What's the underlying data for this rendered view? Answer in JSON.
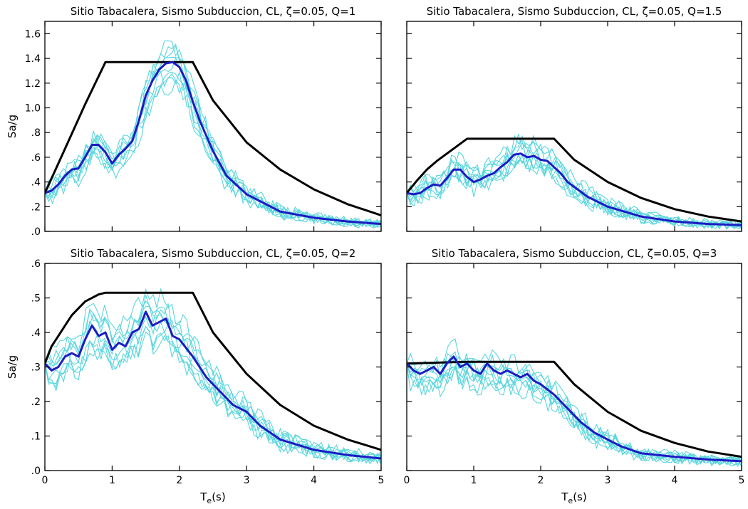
{
  "colors": {
    "records": "#5ad6dc",
    "mean": "#1c1cc4",
    "design": "#000000"
  },
  "chart_data": [
    {
      "type": "line",
      "title": "Sitio Tabacalera, Sismo Subduccion, CL, ζ=0.05, Q=1",
      "xlabel": "",
      "ylabel": "Sa/g",
      "xlim": [
        0,
        5
      ],
      "ylim": [
        0,
        1.7
      ],
      "xticks": [
        0,
        1,
        2,
        3,
        4,
        5
      ],
      "xtick_labels": [],
      "yticks": [
        0,
        0.2,
        0.4,
        0.6,
        0.8,
        1.0,
        1.2,
        1.4,
        1.6
      ],
      "ytick_labels": [
        ".0",
        ".2",
        ".4",
        ".6",
        ".8",
        "1.0",
        "1.2",
        "1.4",
        "1.6"
      ],
      "design": {
        "x": [
          0,
          0.2,
          0.4,
          0.6,
          0.9,
          2.2,
          2.5,
          3,
          3.5,
          4,
          4.5,
          5
        ],
        "y": [
          0.31,
          0.55,
          0.79,
          1.03,
          1.37,
          1.37,
          1.06,
          0.72,
          0.5,
          0.34,
          0.22,
          0.13
        ]
      },
      "mean": {
        "x": [
          0,
          0.1,
          0.2,
          0.3,
          0.4,
          0.5,
          0.6,
          0.7,
          0.8,
          0.9,
          1.0,
          1.1,
          1.2,
          1.3,
          1.4,
          1.5,
          1.6,
          1.7,
          1.8,
          1.9,
          2.0,
          2.1,
          2.2,
          2.3,
          2.5,
          2.7,
          3.0,
          3.5,
          4.0,
          4.5,
          5.0
        ],
        "y": [
          0.31,
          0.33,
          0.38,
          0.45,
          0.5,
          0.51,
          0.6,
          0.7,
          0.7,
          0.64,
          0.55,
          0.62,
          0.67,
          0.73,
          0.9,
          1.1,
          1.22,
          1.31,
          1.36,
          1.37,
          1.33,
          1.22,
          1.05,
          0.9,
          0.65,
          0.45,
          0.3,
          0.16,
          0.11,
          0.08,
          0.06
        ]
      }
    },
    {
      "type": "line",
      "title": "Sitio Tabacalera, Sismo Subduccion, CL, ζ=0.05, Q=1.5",
      "xlabel": "",
      "ylabel": "",
      "xlim": [
        0,
        5
      ],
      "ylim": [
        0,
        1.7
      ],
      "xticks": [
        0,
        1,
        2,
        3,
        4,
        5
      ],
      "xtick_labels": [],
      "yticks": [
        0,
        0.2,
        0.4,
        0.6,
        0.8,
        1.0,
        1.2,
        1.4,
        1.6
      ],
      "ytick_labels": [],
      "design": {
        "x": [
          0,
          0.15,
          0.3,
          0.45,
          0.6,
          0.75,
          0.9,
          2.2,
          2.5,
          3,
          3.5,
          4,
          4.5,
          5
        ],
        "y": [
          0.31,
          0.41,
          0.5,
          0.57,
          0.63,
          0.69,
          0.75,
          0.75,
          0.58,
          0.4,
          0.27,
          0.18,
          0.12,
          0.08
        ]
      },
      "mean": {
        "x": [
          0,
          0.1,
          0.2,
          0.3,
          0.4,
          0.5,
          0.6,
          0.7,
          0.8,
          0.9,
          1.0,
          1.1,
          1.2,
          1.3,
          1.4,
          1.5,
          1.6,
          1.7,
          1.8,
          1.9,
          2.0,
          2.1,
          2.2,
          2.3,
          2.4,
          2.5,
          2.7,
          3.0,
          3.5,
          4.0,
          4.5,
          5.0
        ],
        "y": [
          0.31,
          0.3,
          0.31,
          0.35,
          0.38,
          0.37,
          0.43,
          0.5,
          0.5,
          0.44,
          0.4,
          0.42,
          0.45,
          0.47,
          0.52,
          0.56,
          0.62,
          0.63,
          0.6,
          0.61,
          0.58,
          0.57,
          0.52,
          0.47,
          0.4,
          0.36,
          0.28,
          0.2,
          0.12,
          0.08,
          0.06,
          0.05
        ]
      }
    },
    {
      "type": "line",
      "title": "Sitio Tabacalera, Sismo Subduccion, CL, ζ=0.05, Q=2",
      "xlabel": "Te(s)",
      "ylabel": "Sa/g",
      "xlim": [
        0,
        5
      ],
      "ylim": [
        0,
        0.6
      ],
      "xticks": [
        0,
        1,
        2,
        3,
        4,
        5
      ],
      "xtick_labels": [
        "0",
        "1",
        "2",
        "3",
        "4",
        "5"
      ],
      "yticks": [
        0,
        0.1,
        0.2,
        0.3,
        0.4,
        0.5,
        0.6
      ],
      "ytick_labels": [
        ".0",
        ".1",
        ".2",
        ".3",
        ".4",
        ".5",
        ".6"
      ],
      "design": {
        "x": [
          0,
          0.1,
          0.2,
          0.3,
          0.4,
          0.5,
          0.6,
          0.7,
          0.8,
          0.9,
          2.2,
          2.5,
          3,
          3.5,
          4,
          4.5,
          5
        ],
        "y": [
          0.31,
          0.36,
          0.39,
          0.42,
          0.45,
          0.47,
          0.49,
          0.5,
          0.51,
          0.515,
          0.515,
          0.4,
          0.28,
          0.19,
          0.13,
          0.09,
          0.06
        ]
      },
      "mean": {
        "x": [
          0,
          0.1,
          0.2,
          0.3,
          0.4,
          0.5,
          0.6,
          0.7,
          0.8,
          0.9,
          1.0,
          1.1,
          1.2,
          1.3,
          1.4,
          1.5,
          1.6,
          1.7,
          1.8,
          1.9,
          2.0,
          2.2,
          2.4,
          2.6,
          2.8,
          3.0,
          3.2,
          3.5,
          4.0,
          4.5,
          5.0
        ],
        "y": [
          0.31,
          0.29,
          0.3,
          0.33,
          0.34,
          0.33,
          0.38,
          0.42,
          0.39,
          0.4,
          0.35,
          0.37,
          0.36,
          0.4,
          0.41,
          0.46,
          0.42,
          0.43,
          0.44,
          0.39,
          0.38,
          0.33,
          0.27,
          0.23,
          0.19,
          0.17,
          0.13,
          0.09,
          0.06,
          0.045,
          0.035
        ]
      }
    },
    {
      "type": "line",
      "title": "Sitio Tabacalera, Sismo Subduccion, CL, ζ=0.05, Q=3",
      "xlabel": "Te(s)",
      "ylabel": "",
      "xlim": [
        0,
        5
      ],
      "ylim": [
        0,
        0.6
      ],
      "xticks": [
        0,
        1,
        2,
        3,
        4,
        5
      ],
      "xtick_labels": [
        "0",
        "1",
        "2",
        "3",
        "4",
        "5"
      ],
      "yticks": [
        0,
        0.1,
        0.2,
        0.3,
        0.4,
        0.5,
        0.6
      ],
      "ytick_labels": [],
      "design": {
        "x": [
          0,
          0.9,
          2.2,
          2.5,
          3,
          3.5,
          4,
          4.5,
          5
        ],
        "y": [
          0.31,
          0.315,
          0.315,
          0.25,
          0.17,
          0.115,
          0.08,
          0.055,
          0.04
        ]
      },
      "mean": {
        "x": [
          0,
          0.1,
          0.2,
          0.3,
          0.4,
          0.5,
          0.6,
          0.7,
          0.8,
          0.9,
          1.0,
          1.1,
          1.2,
          1.3,
          1.4,
          1.5,
          1.6,
          1.7,
          1.8,
          1.9,
          2.0,
          2.2,
          2.4,
          2.6,
          2.8,
          3.0,
          3.2,
          3.5,
          4.0,
          4.5,
          5.0
        ],
        "y": [
          0.31,
          0.29,
          0.28,
          0.29,
          0.3,
          0.28,
          0.31,
          0.33,
          0.3,
          0.31,
          0.29,
          0.28,
          0.31,
          0.29,
          0.28,
          0.29,
          0.28,
          0.27,
          0.28,
          0.26,
          0.25,
          0.22,
          0.18,
          0.14,
          0.11,
          0.09,
          0.07,
          0.05,
          0.04,
          0.032,
          0.027
        ]
      }
    }
  ]
}
